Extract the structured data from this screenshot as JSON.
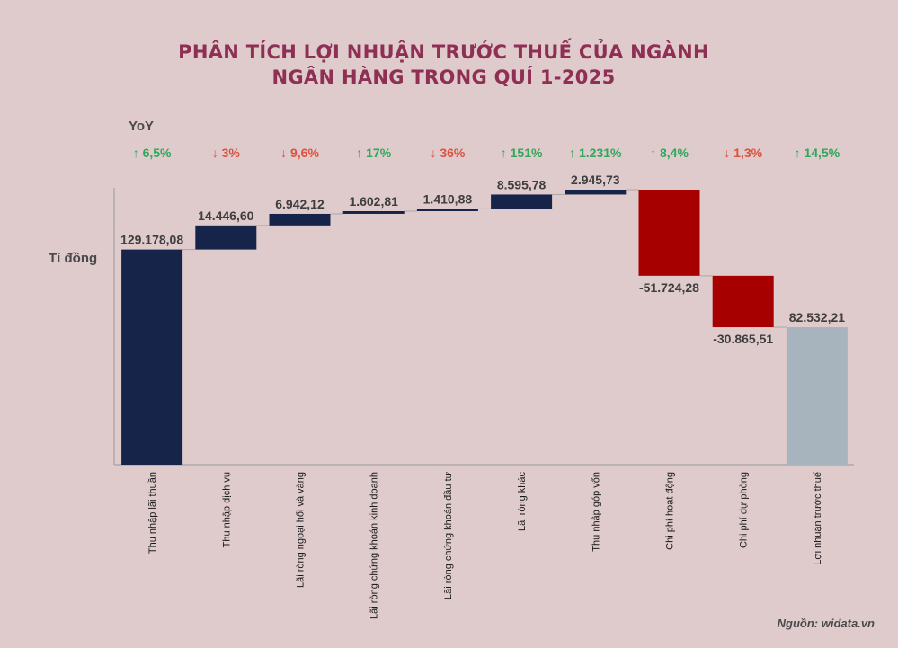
{
  "header": {
    "title_line1": "PHÂN TÍCH LỢI NHUẬN TRƯỚC THUẾ CỦA NGÀNH",
    "title_line2": "NGÂN HÀNG TRONG QUÍ 1-2025",
    "yoy_label": "YoY",
    "unit_label": "Tỉ đồng"
  },
  "footer": {
    "source": "Nguồn: widata.vn"
  },
  "colors": {
    "positive_bar": "#172449",
    "negative_bar": "#a70000",
    "total_bar": "#a8b4bd",
    "yoy_up": "#2fa85a",
    "yoy_down": "#d9533f",
    "title": "#8e2f53"
  },
  "chart_data": {
    "type": "waterfall",
    "categories": [
      "Thu nhập lãi thuần",
      "Thu nhập dịch vụ",
      "Lãi ròng ngoại hối và vàng",
      "Lãi ròng chứng khoán kinh doanh",
      "Lãi ròng chứng khoán đầu tư",
      "Lãi ròng khác",
      "Thu nhập góp vốn",
      "Chi phí hoạt động",
      "Chi phí dự phòng",
      "Lợi nhuận trước thuế"
    ],
    "values": [
      129178.08,
      14446.6,
      6942.12,
      1602.81,
      1410.88,
      8595.78,
      2945.73,
      -51724.28,
      -30865.51,
      82532.21
    ],
    "value_labels": [
      "129.178,08",
      "14.446,60",
      "6.942,12",
      "1.602,81",
      "1.410,88",
      "8.595,78",
      "2.945,73",
      "-51.724,28",
      "-30.865,51",
      "82.532,21"
    ],
    "bar_kind": [
      "increase",
      "increase",
      "increase",
      "increase",
      "increase",
      "increase",
      "increase",
      "decrease",
      "decrease",
      "total"
    ],
    "yoy": [
      {
        "dir": "up",
        "text": "6,5%"
      },
      {
        "dir": "down",
        "text": "3%"
      },
      {
        "dir": "down",
        "text": "9,6%"
      },
      {
        "dir": "up",
        "text": "17%"
      },
      {
        "dir": "down",
        "text": "36%"
      },
      {
        "dir": "up",
        "text": "151%"
      },
      {
        "dir": "up",
        "text": "1.231%"
      },
      {
        "dir": "up",
        "text": "8,4%"
      },
      {
        "dir": "down",
        "text": "1,3%"
      },
      {
        "dir": "up",
        "text": "14,5%"
      }
    ],
    "ylim": [
      0,
      165121.12
    ]
  }
}
